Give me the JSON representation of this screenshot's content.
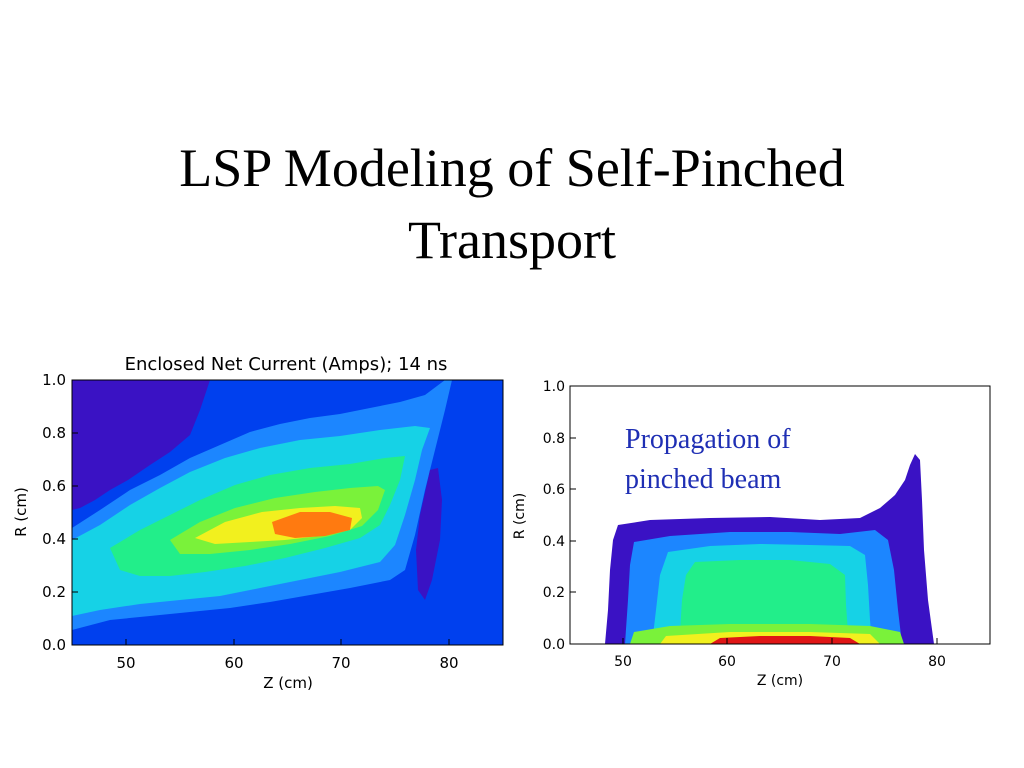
{
  "slide": {
    "title_lines": [
      "LSP Modeling of Self-Pinched",
      "Transport"
    ],
    "annotation_lines": [
      "Propagation of",
      "pinched beam"
    ]
  },
  "colors": {
    "background": "#0040ee",
    "level_1": "#3a12c4",
    "level_2": "#1c86ff",
    "level_3": "#16d2e6",
    "level_4": "#22ee8a",
    "level_5": "#7af23a",
    "level_6": "#f2f01e",
    "level_7": "#ff7a10",
    "level_8": "#e01616"
  },
  "chart_data": [
    {
      "type": "heatmap",
      "title": "Enclosed Net Current (Amps); 14 ns",
      "xlabel": "Z (cm)",
      "ylabel": "R (cm)",
      "xlim": [
        45,
        85
      ],
      "ylim": [
        0.0,
        1.0
      ],
      "x_ticks": [
        "50",
        "60",
        "70",
        "80"
      ],
      "y_ticks": [
        "0.0",
        "0.2",
        "0.4",
        "0.6",
        "0.8",
        "1.0"
      ],
      "colorbar": false
    },
    {
      "type": "heatmap",
      "title": "",
      "xlabel": "Z (cm)",
      "ylabel": "R (cm)",
      "xlim": [
        45,
        85
      ],
      "ylim": [
        0.0,
        1.0
      ],
      "x_ticks": [
        "50",
        "60",
        "70",
        "80"
      ],
      "y_ticks": [
        "0.0",
        "0.2",
        "0.4",
        "0.6",
        "0.8",
        "1.0"
      ],
      "colorbar": false
    }
  ]
}
